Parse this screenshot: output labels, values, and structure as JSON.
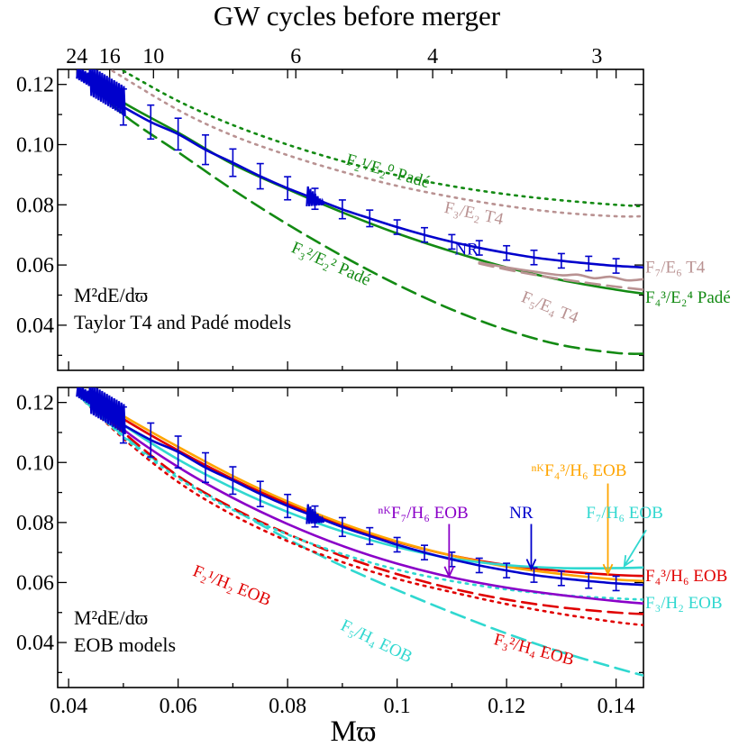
{
  "figure": {
    "top_axis_title": "GW cycles before merger",
    "x_axis_title": "Mϖ",
    "top_ticks": [
      {
        "label": "24",
        "x": 0.0415
      },
      {
        "label": "16",
        "x": 0.0475
      },
      {
        "label": "10",
        "x": 0.0555
      },
      {
        "label": "6",
        "x": 0.0815
      },
      {
        "label": "4",
        "x": 0.1065
      },
      {
        "label": "3",
        "x": 0.1365
      }
    ]
  },
  "colors": {
    "NR": "#0000cc",
    "green": "#138a13",
    "rosy": "#b99292",
    "red": "#e00000",
    "cyan": "#30d8d0",
    "orange": "#ffa500",
    "purple": "#8a00c8"
  },
  "chart_data": [
    {
      "type": "line",
      "panel": "top",
      "annotation_lines": [
        "M²dE/dϖ",
        "Taylor T4 and Padé models"
      ],
      "xlim": [
        0.038,
        0.145
      ],
      "ylim": [
        0.025,
        0.125
      ],
      "x_ticks": [
        0.04,
        0.06,
        0.08,
        0.1,
        0.12,
        0.14
      ],
      "y_ticks": [
        0.04,
        0.06,
        0.08,
        0.1,
        0.12
      ],
      "y_tick_labels": [
        "0.04",
        "0.06",
        "0.08",
        "0.10",
        "0.12"
      ],
      "series": [
        {
          "label": "F₃²/E₂² Padé",
          "color": "green",
          "dash": "dashed",
          "x": [
            0.042,
            0.05,
            0.06,
            0.07,
            0.08,
            0.09,
            0.1,
            0.11,
            0.12,
            0.13,
            0.14,
            0.145
          ],
          "y": [
            0.124,
            0.11,
            0.0975,
            0.085,
            0.0735,
            0.063,
            0.0535,
            0.0452,
            0.0384,
            0.0334,
            0.0308,
            0.0305
          ]
        },
        {
          "label": "F₂¹/E₂⁰ Padé",
          "color": "green",
          "dash": "dotted",
          "x": [
            0.05,
            0.06,
            0.07,
            0.08,
            0.09,
            0.1,
            0.11,
            0.12,
            0.13,
            0.14,
            0.145
          ],
          "y": [
            0.1245,
            0.1145,
            0.1065,
            0.1,
            0.0945,
            0.0898,
            0.0862,
            0.0835,
            0.0815,
            0.08,
            0.0795
          ]
        },
        {
          "label": "F₃/E₂ T4",
          "color": "rosy",
          "dash": "dotted",
          "x": [
            0.048,
            0.06,
            0.07,
            0.08,
            0.09,
            0.1,
            0.11,
            0.12,
            0.13,
            0.14,
            0.145
          ],
          "y": [
            0.1245,
            0.1115,
            0.103,
            0.0965,
            0.091,
            0.0863,
            0.0826,
            0.0796,
            0.0774,
            0.0762,
            0.0762
          ]
        },
        {
          "label": "F₄³/E₂⁴ Padé",
          "color": "green",
          "dash": "solid",
          "x": [
            0.042,
            0.05,
            0.06,
            0.07,
            0.08,
            0.09,
            0.1,
            0.11,
            0.12,
            0.13,
            0.14,
            0.145
          ],
          "y": [
            0.124,
            0.114,
            0.104,
            0.0935,
            0.0852,
            0.0775,
            0.0705,
            0.0645,
            0.0592,
            0.055,
            0.0518,
            0.0505
          ]
        },
        {
          "label": "F₅/E₄ T4",
          "color": "rosy",
          "dash": "dashed",
          "x": [
            0.115,
            0.12,
            0.125,
            0.13,
            0.135,
            0.14,
            0.145
          ],
          "y": [
            0.0605,
            0.0585,
            0.0568,
            0.0553,
            0.054,
            0.0528,
            0.0518
          ]
        },
        {
          "label": "F₇/E₆ T4",
          "color": "rosy",
          "dash": "solid",
          "x": [
            0.115,
            0.12,
            0.125,
            0.13,
            0.133,
            0.136,
            0.139,
            0.142,
            0.145
          ],
          "y": [
            0.0608,
            0.0592,
            0.0578,
            0.0566,
            0.0568,
            0.0556,
            0.0561,
            0.0549,
            0.0553
          ]
        },
        {
          "label": "NR",
          "color": "NR",
          "dash": "solid",
          "error_bars": true,
          "x": [
            0.042,
            0.045,
            0.048,
            0.05,
            0.055,
            0.06,
            0.065,
            0.07,
            0.075,
            0.08,
            0.085,
            0.09,
            0.095,
            0.1,
            0.105,
            0.11,
            0.115,
            0.12,
            0.125,
            0.13,
            0.135,
            0.14,
            0.145
          ],
          "y": [
            0.124,
            0.1185,
            0.1145,
            0.1125,
            0.1075,
            0.1035,
            0.0983,
            0.094,
            0.0895,
            0.0855,
            0.082,
            0.0785,
            0.0755,
            0.0726,
            0.07,
            0.0677,
            0.0657,
            0.064,
            0.0625,
            0.0614,
            0.0605,
            0.0597,
            0.0592
          ]
        }
      ],
      "labels": [
        {
          "text": "NR",
          "color": "NR",
          "x": 0.1105,
          "y": 0.0635
        },
        {
          "text": "F₂¹/E₂⁰ Padé",
          "color": "green",
          "x": 0.0905,
          "y": 0.0935,
          "rotate": 16
        },
        {
          "text": "F₃/E₂ T4",
          "color": "rosy",
          "x": 0.1085,
          "y": 0.0775,
          "rotate": 12
        },
        {
          "text": "F₃²/E₂² Padé",
          "color": "green",
          "x": 0.0805,
          "y": 0.0645,
          "rotate": 24
        },
        {
          "text": "F₇/E₆ T4",
          "color": "rosy",
          "x": 0.1455,
          "y": 0.0575
        },
        {
          "text": "F₅/E₄ T4",
          "color": "rosy",
          "x": 0.1225,
          "y": 0.048,
          "rotate": 22
        },
        {
          "text": "F₄³/E₂⁴ Padé",
          "color": "green",
          "x": 0.1455,
          "y": 0.0475
        }
      ]
    },
    {
      "type": "line",
      "panel": "bottom",
      "annotation_lines": [
        "M²dE/dϖ",
        "EOB models"
      ],
      "xlim": [
        0.038,
        0.145
      ],
      "ylim": [
        0.025,
        0.125
      ],
      "x_ticks": [
        0.04,
        0.06,
        0.08,
        0.1,
        0.12,
        0.14
      ],
      "x_tick_labels": [
        "0.04",
        "0.06",
        "0.08",
        "0.1",
        "0.12",
        "0.14"
      ],
      "y_ticks": [
        0.04,
        0.06,
        0.08,
        0.1,
        0.12
      ],
      "y_tick_labels": [
        "0.04",
        "0.06",
        "0.08",
        "0.10",
        "0.12"
      ],
      "series": [
        {
          "label": "F₅/H₄ EOB",
          "color": "cyan",
          "dash": "dashed",
          "x": [
            0.042,
            0.05,
            0.06,
            0.07,
            0.08,
            0.09,
            0.1,
            0.11,
            0.12,
            0.13,
            0.14,
            0.145
          ],
          "y": [
            0.122,
            0.109,
            0.0955,
            0.0845,
            0.0745,
            0.0655,
            0.0575,
            0.05,
            0.043,
            0.0368,
            0.0315,
            0.029
          ]
        },
        {
          "label": "F₂¹/H₂ EOB",
          "color": "red",
          "dash": "dashed",
          "x": [
            0.042,
            0.05,
            0.06,
            0.07,
            0.08,
            0.09,
            0.1,
            0.11,
            0.12,
            0.13,
            0.14,
            0.145
          ],
          "y": [
            0.123,
            0.11,
            0.0955,
            0.0848,
            0.0762,
            0.0688,
            0.0628,
            0.058,
            0.0543,
            0.0517,
            0.05,
            0.0495
          ]
        },
        {
          "label": "F₃²/H₄ EOB",
          "color": "red",
          "dash": "dotted",
          "x": [
            0.042,
            0.05,
            0.06,
            0.07,
            0.08,
            0.09,
            0.1,
            0.11,
            0.12,
            0.13,
            0.14,
            0.145
          ],
          "y": [
            0.122,
            0.108,
            0.0935,
            0.0825,
            0.0738,
            0.0668,
            0.0612,
            0.0568,
            0.0528,
            0.0495,
            0.0468,
            0.0458
          ]
        },
        {
          "label": "F₃/H₂ EOB",
          "color": "cyan",
          "dash": "dotted",
          "x": [
            0.042,
            0.05,
            0.06,
            0.07,
            0.08,
            0.09,
            0.1,
            0.11,
            0.12,
            0.13,
            0.14,
            0.145
          ],
          "y": [
            0.122,
            0.1085,
            0.0948,
            0.0842,
            0.076,
            0.0695,
            0.0643,
            0.0605,
            0.0577,
            0.0558,
            0.0547,
            0.0543
          ]
        },
        {
          "label": "ⁿᴷF₇/H₆ EOB",
          "color": "purple",
          "dash": "solid",
          "x": [
            0.042,
            0.05,
            0.06,
            0.07,
            0.08,
            0.09,
            0.1,
            0.11,
            0.12,
            0.13,
            0.14,
            0.145
          ],
          "y": [
            0.124,
            0.111,
            0.0985,
            0.0882,
            0.0795,
            0.0722,
            0.0663,
            0.0617,
            0.0583,
            0.0558,
            0.0538,
            0.053
          ]
        },
        {
          "label": "F₄³/H₆ EOB",
          "color": "red",
          "dash": "solid",
          "x": [
            0.042,
            0.05,
            0.06,
            0.07,
            0.08,
            0.09,
            0.1,
            0.11,
            0.12,
            0.13,
            0.14,
            0.145
          ],
          "y": [
            0.124,
            0.1145,
            0.104,
            0.0945,
            0.0862,
            0.0792,
            0.0735,
            0.069,
            0.0658,
            0.0638,
            0.0625,
            0.0622
          ]
        },
        {
          "label": "ⁿᴷF₄³/H₆ EOB",
          "color": "orange",
          "dash": "solid",
          "x": [
            0.042,
            0.05,
            0.06,
            0.07,
            0.08,
            0.09,
            0.1,
            0.11,
            0.12,
            0.13,
            0.14,
            0.145
          ],
          "y": [
            0.1245,
            0.1155,
            0.1052,
            0.0955,
            0.087,
            0.0797,
            0.0737,
            0.069,
            0.0653,
            0.0628,
            0.061,
            0.0605
          ]
        },
        {
          "label": "F₇/H₆ EOB",
          "color": "cyan",
          "dash": "solid",
          "x": [
            0.042,
            0.05,
            0.06,
            0.07,
            0.08,
            0.09,
            0.1,
            0.11,
            0.12,
            0.13,
            0.14,
            0.145
          ],
          "y": [
            0.123,
            0.1125,
            0.101,
            0.0915,
            0.0835,
            0.077,
            0.0718,
            0.068,
            0.0658,
            0.0648,
            0.0648,
            0.065
          ]
        },
        {
          "label": "NR",
          "color": "NR",
          "dash": "solid",
          "error_bars": true,
          "x": [
            0.042,
            0.045,
            0.048,
            0.05,
            0.055,
            0.06,
            0.065,
            0.07,
            0.075,
            0.08,
            0.085,
            0.09,
            0.095,
            0.1,
            0.105,
            0.11,
            0.115,
            0.12,
            0.125,
            0.13,
            0.135,
            0.14,
            0.145
          ],
          "y": [
            0.124,
            0.1185,
            0.1145,
            0.1125,
            0.1075,
            0.1035,
            0.0983,
            0.094,
            0.0895,
            0.0855,
            0.082,
            0.0785,
            0.0755,
            0.0726,
            0.07,
            0.0677,
            0.0657,
            0.064,
            0.0625,
            0.0614,
            0.0605,
            0.0597,
            0.0592
          ]
        }
      ],
      "labels": [
        {
          "text": "ⁿᴷF₄³/H₆ EOB",
          "color": "orange",
          "x": 0.1245,
          "y": 0.0955
        },
        {
          "text": "ⁿᴷF₇/H₆ EOB",
          "color": "purple",
          "x": 0.0965,
          "y": 0.0815
        },
        {
          "text": "NR",
          "color": "NR",
          "x": 0.1205,
          "y": 0.0815
        },
        {
          "text": "F₇/H₆ EOB",
          "color": "cyan",
          "x": 0.1345,
          "y": 0.0815
        },
        {
          "text": "F₂¹/H₂ EOB",
          "color": "red",
          "x": 0.0625,
          "y": 0.0625,
          "rotate": 22
        },
        {
          "text": "F₄³/H₆ EOB",
          "color": "red",
          "x": 0.1455,
          "y": 0.0605
        },
        {
          "text": "F₃/H₂ EOB",
          "color": "cyan",
          "x": 0.1455,
          "y": 0.0515
        },
        {
          "text": "F₅/H₄ EOB",
          "color": "cyan",
          "x": 0.0895,
          "y": 0.0445,
          "rotate": 26
        },
        {
          "text": "F₃²/H₄ EOB",
          "color": "red",
          "x": 0.1175,
          "y": 0.0395,
          "rotate": 15
        }
      ],
      "arrows": [
        {
          "color": "purple",
          "from": [
            0.1095,
            0.0795
          ],
          "to": [
            0.1095,
            0.062
          ]
        },
        {
          "color": "NR",
          "from": [
            0.1245,
            0.0795
          ],
          "to": [
            0.1245,
            0.0645
          ]
        },
        {
          "color": "orange",
          "from": [
            0.1385,
            0.093
          ],
          "to": [
            0.1385,
            0.0628
          ]
        },
        {
          "color": "cyan",
          "from": [
            0.1455,
            0.0775
          ],
          "to": [
            0.1415,
            0.0655
          ]
        }
      ]
    }
  ]
}
